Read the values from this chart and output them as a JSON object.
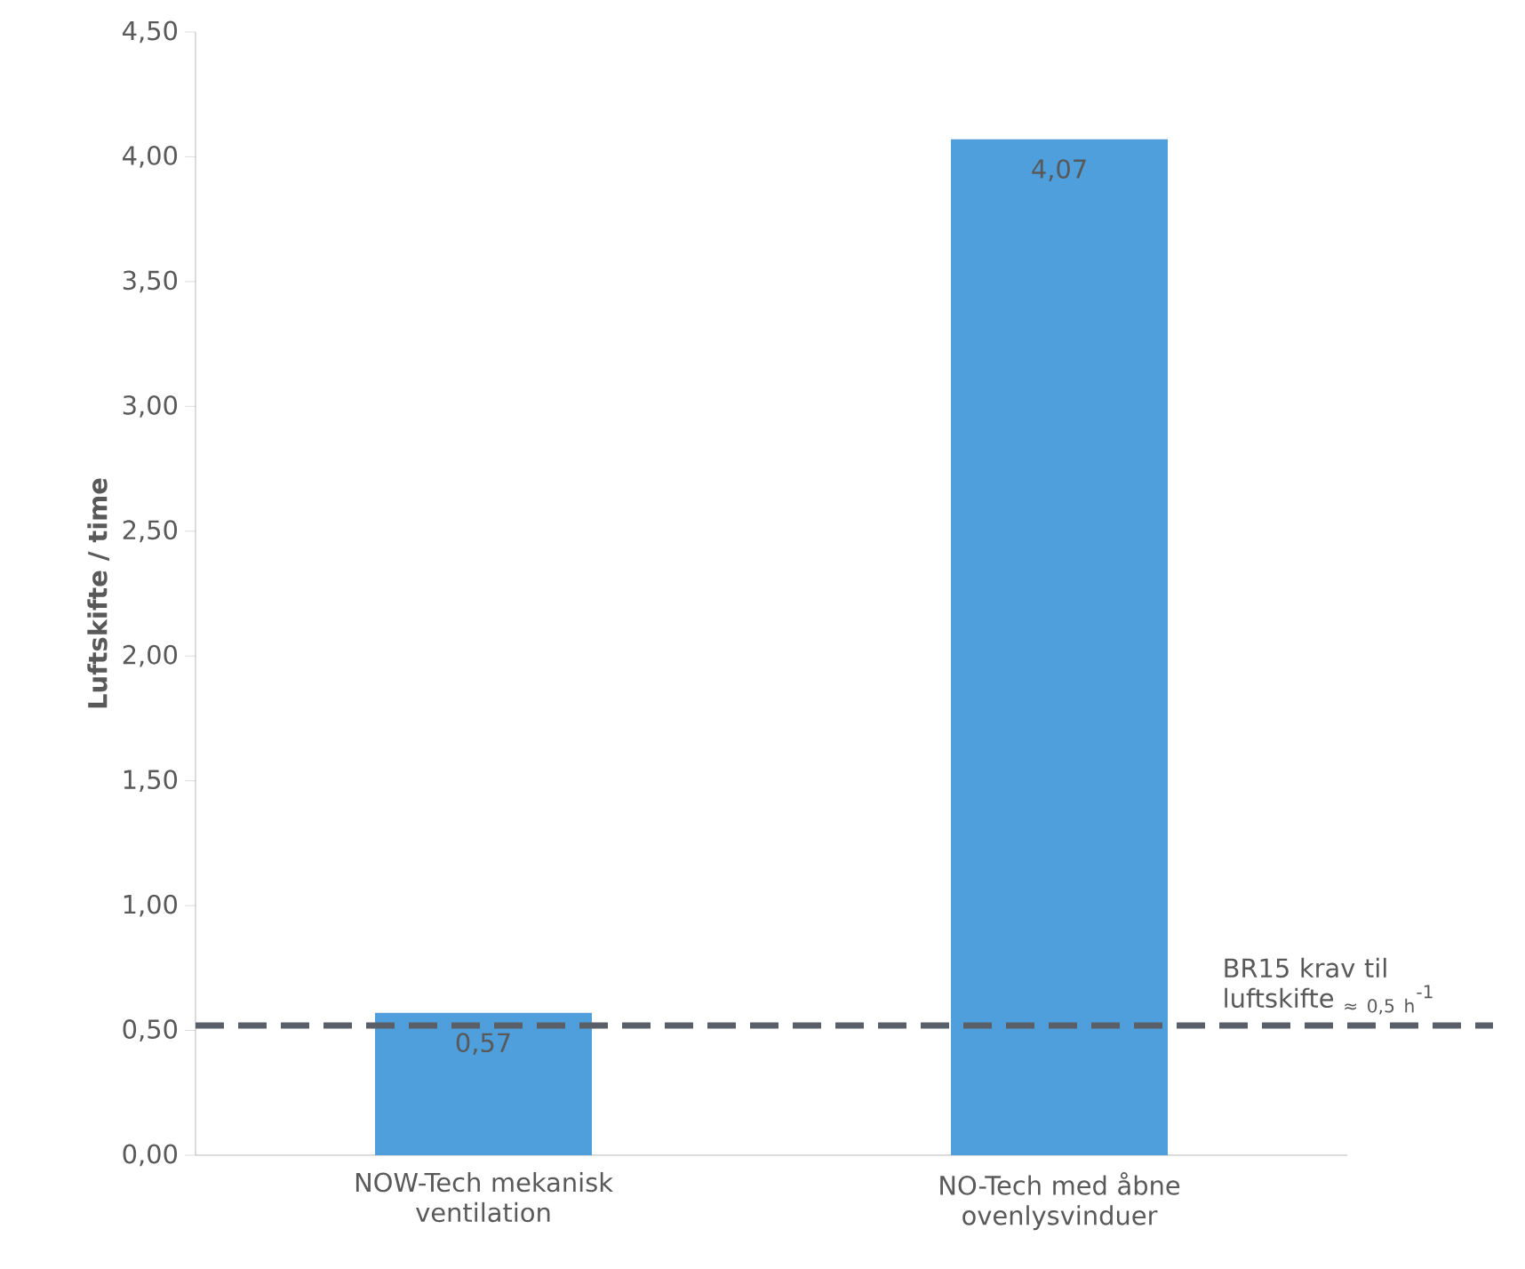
{
  "chart_data": {
    "type": "bar",
    "ylabel": "Luftskifte / time",
    "categories": [
      "NOW-Tech mekanisk ventilation",
      "NO-Tech med åbne ovenlysvinduer"
    ],
    "values": [
      0.57,
      4.07
    ],
    "color": "#4e9fdb",
    "value_labels": [
      "0,57",
      "4,07"
    ],
    "ylim": [
      0,
      4.5
    ],
    "yticks": [
      {
        "value": 0,
        "label": "0,00"
      },
      {
        "value": 0.5,
        "label": "0,50"
      },
      {
        "value": 1,
        "label": "1,00"
      },
      {
        "value": 1.5,
        "label": "1,50"
      },
      {
        "value": 2,
        "label": "2,00"
      },
      {
        "value": 2.5,
        "label": "2,50"
      },
      {
        "value": 3,
        "label": "3,00"
      },
      {
        "value": 3.5,
        "label": "3,50"
      },
      {
        "value": 4,
        "label": "4,00"
      },
      {
        "value": 4.5,
        "label": "4,50"
      }
    ],
    "ref_lines": [
      {
        "axis": "y",
        "value": 0.52,
        "label": "BR15 krav til luftskifte $_{≈ 0,5 h}$$^{-1}$",
        "color": "#5a6069",
        "line_style": "dashed"
      }
    ],
    "grid": false
  }
}
